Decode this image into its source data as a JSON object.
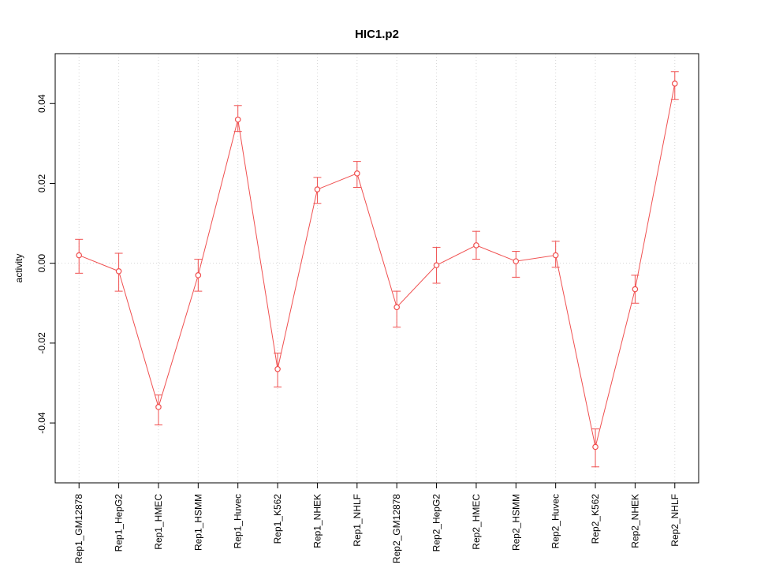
{
  "title": "HIC1.p2",
  "chart_data": {
    "type": "line",
    "title": "HIC1.p2",
    "xlabel": "",
    "ylabel": "activity",
    "line_color": "#f05050",
    "grid_color": "#d6d6d6",
    "axis_color": "#000000",
    "grid": "vertical dotted line at each category plus dotted horizontal line at y=0",
    "legend": "none",
    "ylim": [
      -0.055,
      0.0525
    ],
    "yticks": [
      {
        "value": -0.04,
        "label": "-0.04"
      },
      {
        "value": -0.02,
        "label": "-0.02"
      },
      {
        "value": 0.0,
        "label": "0.00"
      },
      {
        "value": 0.02,
        "label": "0.02"
      },
      {
        "value": 0.04,
        "label": "0.04"
      }
    ],
    "categories": [
      "Rep1_GM12878",
      "Rep1_HepG2",
      "Rep1_HMEC",
      "Rep1_HSMM",
      "Rep1_Huvec",
      "Rep1_K562",
      "Rep1_NHEK",
      "Rep1_NHLF",
      "Rep2_GM12878",
      "Rep2_HepG2",
      "Rep2_HMEC",
      "Rep2_HSMM",
      "Rep2_Huvec",
      "Rep2_K562",
      "Rep2_NHEK",
      "Rep2_NHLF"
    ],
    "series": [
      {
        "name": "activity",
        "values": [
          0.002,
          -0.002,
          -0.036,
          -0.003,
          0.036,
          -0.0265,
          0.0185,
          0.0225,
          -0.011,
          -0.0005,
          0.0045,
          0.0005,
          0.002,
          -0.046,
          -0.0065,
          0.045
        ],
        "upper": [
          0.006,
          0.0025,
          -0.033,
          0.001,
          0.0395,
          -0.0225,
          0.0215,
          0.0255,
          -0.007,
          0.004,
          0.008,
          0.003,
          0.0055,
          -0.0415,
          -0.003,
          0.048
        ],
        "lower": [
          -0.0025,
          -0.007,
          -0.0405,
          -0.007,
          0.033,
          -0.031,
          0.015,
          0.019,
          -0.016,
          -0.005,
          0.001,
          -0.0035,
          -0.001,
          -0.051,
          -0.01,
          0.041
        ]
      }
    ]
  }
}
